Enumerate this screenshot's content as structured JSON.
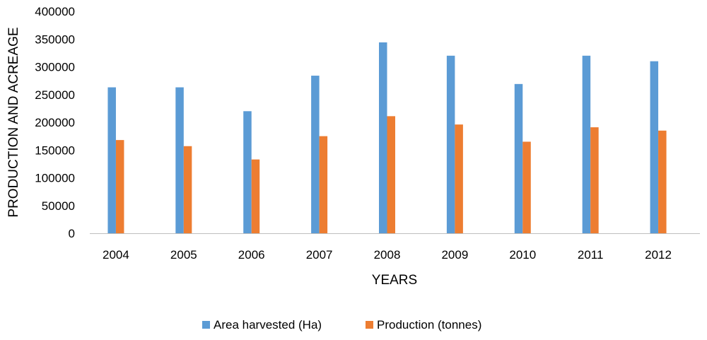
{
  "chart_data": {
    "type": "bar",
    "title": "",
    "xlabel": "YEARS",
    "ylabel": "PRODUCTION AND ACREAGE",
    "categories": [
      "2004",
      "2005",
      "2006",
      "2007",
      "2008",
      "2009",
      "2010",
      "2011",
      "2012"
    ],
    "series": [
      {
        "name": "Area harvested (Ha)",
        "color": "#5B9BD5",
        "values": [
          263000,
          263000,
          220000,
          284000,
          344000,
          320000,
          269000,
          320000,
          310000
        ]
      },
      {
        "name": "Production (tonnes)",
        "color": "#ED7D31",
        "values": [
          168000,
          157000,
          133000,
          175000,
          211000,
          196000,
          165000,
          191000,
          185000
        ]
      }
    ],
    "ylim": [
      0,
      400000
    ],
    "yticks": [
      "0",
      "50000",
      "100000",
      "150000",
      "200000",
      "250000",
      "300000",
      "350000",
      "400000"
    ],
    "grid": false,
    "legend_position": "bottom"
  }
}
